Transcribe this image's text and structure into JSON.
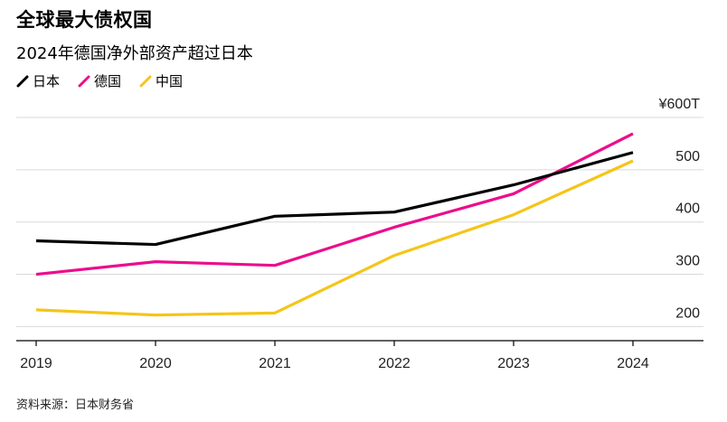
{
  "title": "全球最大债权国",
  "subtitle": "2024年德国净外部资产超过日本",
  "source": "资料来源：日本财务省",
  "chart_data": {
    "type": "line",
    "x": [
      "2019",
      "2020",
      "2021",
      "2022",
      "2023",
      "2024"
    ],
    "series": [
      {
        "name": "日本",
        "color": "#000000",
        "values": [
          364,
          357,
          411,
          419,
          471,
          533
        ]
      },
      {
        "name": "德国",
        "color": "#ec0d8c",
        "values": [
          300,
          324,
          317,
          390,
          454,
          569
        ]
      },
      {
        "name": "中国",
        "color": "#f5c518",
        "values": [
          232,
          222,
          226,
          336,
          414,
          517
        ]
      }
    ],
    "ylim": [
      173,
      600
    ],
    "yticks": [
      200,
      300,
      400,
      500,
      600
    ],
    "ytick_labels": [
      "200",
      "300",
      "400",
      "500",
      "¥600T"
    ],
    "grid": true,
    "legend_position": "top-left"
  }
}
